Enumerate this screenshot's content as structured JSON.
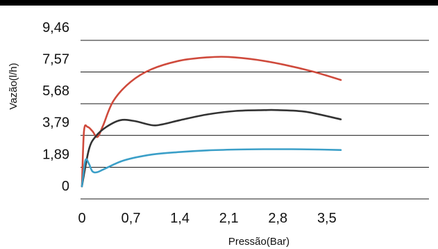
{
  "chart_data": {
    "type": "line",
    "title": "",
    "xlabel": "Pressão(Bar)",
    "ylabel": "Vazão(l/h)",
    "xlim": [
      0,
      4.2
    ],
    "ylim": [
      0,
      9.46
    ],
    "x_ticks": [
      "0",
      "0,7",
      "1,4",
      "2,1",
      "2,8",
      "3,5"
    ],
    "x_tick_values": [
      0,
      0.7,
      1.4,
      2.1,
      2.8,
      3.5
    ],
    "y_ticks": [
      "0",
      "1,89",
      "3,79",
      "5,68",
      "7,57",
      "9,46"
    ],
    "y_tick_values": [
      0,
      1.89,
      3.79,
      5.68,
      7.57,
      9.46
    ],
    "grid": "horizontal",
    "legend": "none",
    "series": [
      {
        "color": "#cf4a3c",
        "x": [
          0,
          0.03,
          0.08,
          0.15,
          0.22,
          0.3,
          0.45,
          0.7,
          1.0,
          1.4,
          1.8,
          2.1,
          2.5,
          2.9,
          3.3,
          3.7
        ],
        "y": [
          0,
          3.3,
          3.55,
          3.3,
          2.95,
          3.6,
          5.1,
          6.25,
          7.0,
          7.5,
          7.7,
          7.72,
          7.55,
          7.25,
          6.85,
          6.35
        ]
      },
      {
        "color": "#333333",
        "x": [
          0,
          0.1,
          0.2,
          0.35,
          0.55,
          0.75,
          1.0,
          1.15,
          1.4,
          1.8,
          2.2,
          2.6,
          2.8,
          3.2,
          3.7
        ],
        "y": [
          0,
          2.2,
          3.0,
          3.55,
          3.95,
          3.9,
          3.65,
          3.7,
          3.95,
          4.3,
          4.5,
          4.55,
          4.55,
          4.45,
          4.0
        ]
      },
      {
        "color": "#3b9fc8",
        "x": [
          0,
          0.05,
          0.1,
          0.15,
          0.22,
          0.35,
          0.6,
          1.0,
          1.4,
          1.8,
          2.2,
          2.6,
          3.0,
          3.4,
          3.7
        ],
        "y": [
          0,
          1.55,
          1.35,
          0.9,
          0.85,
          1.1,
          1.55,
          1.9,
          2.05,
          2.15,
          2.2,
          2.22,
          2.22,
          2.2,
          2.17
        ]
      }
    ]
  }
}
